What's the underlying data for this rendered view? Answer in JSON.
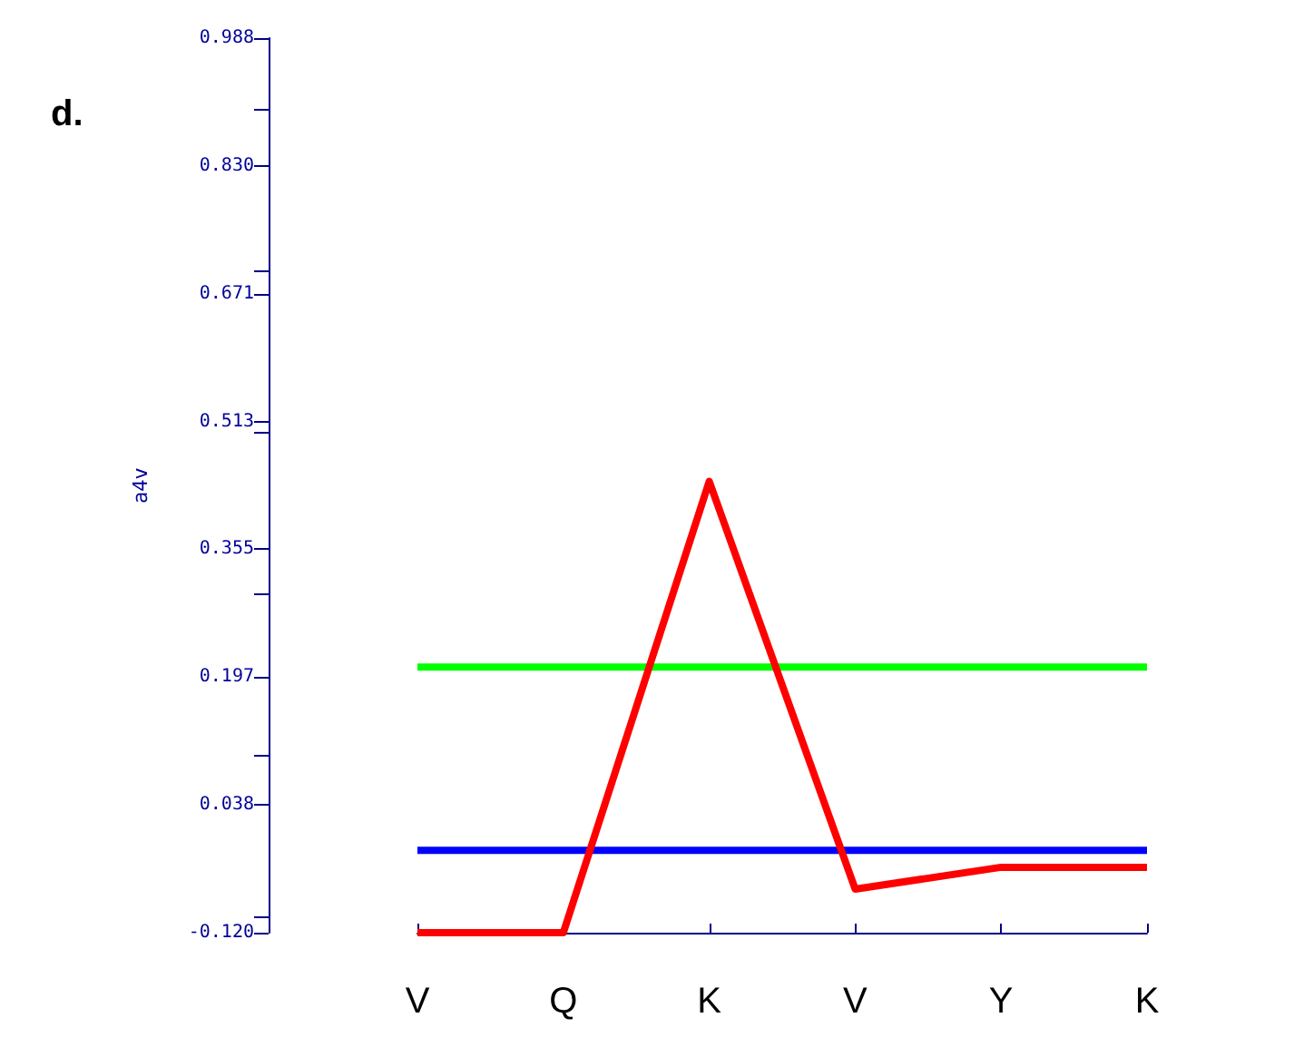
{
  "chart_data": {
    "type": "line",
    "ylabel": "a4v",
    "annotations": [
      "d."
    ],
    "categories": [
      "V",
      "Q",
      "K",
      "V",
      "Y",
      "K"
    ],
    "series": [
      {
        "color": "#ff0000",
        "values": [
          -0.12,
          -0.12,
          0.439,
          -0.066,
          -0.039,
          -0.039
        ]
      },
      {
        "color": "#00ff00",
        "values": [
          0.209,
          0.209,
          0.209,
          0.209,
          0.209,
          0.209
        ]
      },
      {
        "color": "#0000ff",
        "values": [
          -0.018,
          -0.018,
          -0.018,
          -0.018,
          -0.018,
          -0.018
        ]
      }
    ],
    "ylim": [
      -0.12,
      0.988
    ],
    "yticks": [
      {
        "value": -0.12,
        "label": "-0.120"
      },
      {
        "value": 0.038,
        "label": "0.038"
      },
      {
        "value": 0.197,
        "label": "0.197"
      },
      {
        "value": 0.355,
        "label": "0.355"
      },
      {
        "value": 0.513,
        "label": "0.513"
      },
      {
        "value": 0.671,
        "label": "0.671"
      },
      {
        "value": 0.83,
        "label": "0.830"
      },
      {
        "value": 0.988,
        "label": "0.988"
      }
    ],
    "grid": false,
    "marker": "none",
    "line_style": "solid"
  }
}
